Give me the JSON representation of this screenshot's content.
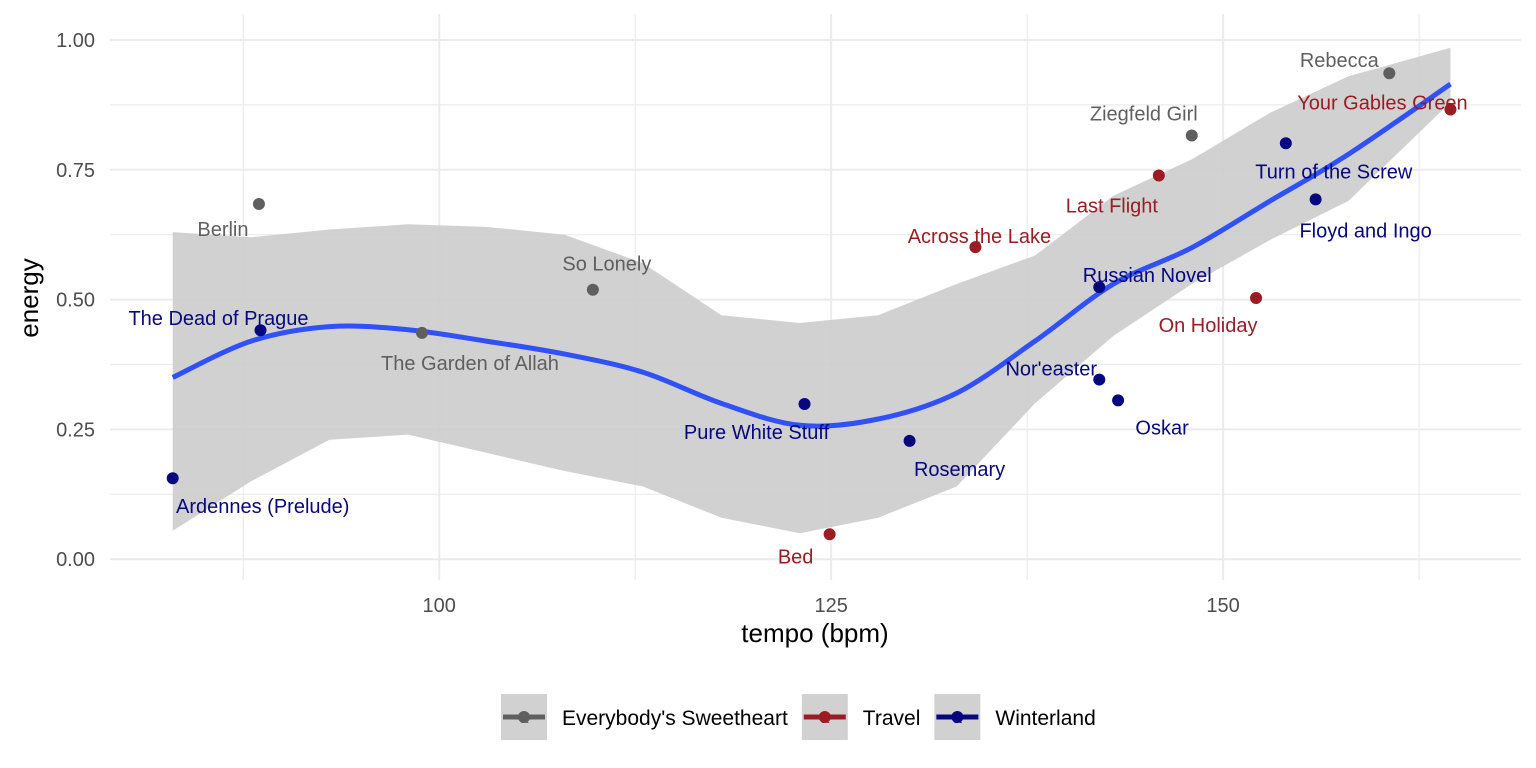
{
  "chart_data": {
    "type": "scatter",
    "title": "",
    "xlabel": "tempo (bpm)",
    "ylabel": "energy",
    "xlim": [
      79,
      169
    ],
    "ylim": [
      -0.04,
      1.05
    ],
    "x_ticks": [
      {
        "value": 100,
        "label": "100"
      },
      {
        "value": 125,
        "label": "125"
      },
      {
        "value": 150,
        "label": "150"
      }
    ],
    "y_ticks": [
      {
        "value": 0.0,
        "label": "0.00"
      },
      {
        "value": 0.25,
        "label": "0.25"
      },
      {
        "value": 0.5,
        "label": "0.50"
      },
      {
        "value": 0.75,
        "label": "0.75"
      },
      {
        "value": 1.0,
        "label": "1.00"
      }
    ],
    "grid": true,
    "legend_position": "bottom",
    "series": [
      {
        "name": "Everybody's Sweetheart",
        "color": "#5f5f5f",
        "points": [
          {
            "x": 88.5,
            "y": 0.684,
            "label": "Berlin"
          },
          {
            "x": 98.9,
            "y": 0.436,
            "label": "The Garden of Allah"
          },
          {
            "x": 109.8,
            "y": 0.519,
            "label": "So Lonely"
          },
          {
            "x": 148.0,
            "y": 0.816,
            "label": "Ziegfeld Girl"
          },
          {
            "x": 160.6,
            "y": 0.936,
            "label": "Rebecca"
          }
        ]
      },
      {
        "name": "Travel",
        "color": "#9b1c22",
        "points": [
          {
            "x": 124.9,
            "y": 0.048,
            "label": "Bed"
          },
          {
            "x": 134.2,
            "y": 0.601,
            "label": "Across the Lake"
          },
          {
            "x": 145.9,
            "y": 0.739,
            "label": "Last Flight"
          },
          {
            "x": 152.1,
            "y": 0.503,
            "label": "On Holiday"
          },
          {
            "x": 164.5,
            "y": 0.866,
            "label": "Your Gables Green"
          }
        ]
      },
      {
        "name": "Winterland",
        "color": "#07077f",
        "points": [
          {
            "x": 83.0,
            "y": 0.156,
            "label": "Ardennes (Prelude)"
          },
          {
            "x": 88.6,
            "y": 0.441,
            "label": "The Dead of Prague"
          },
          {
            "x": 123.3,
            "y": 0.299,
            "label": "Pure White Stuff"
          },
          {
            "x": 130.0,
            "y": 0.228,
            "label": "Rosemary"
          },
          {
            "x": 142.1,
            "y": 0.346,
            "label": "Nor'easter"
          },
          {
            "x": 143.3,
            "y": 0.306,
            "label": "Oskar"
          },
          {
            "x": 142.1,
            "y": 0.524,
            "label": "Russian Novel"
          },
          {
            "x": 154.0,
            "y": 0.801,
            "label": "Turn of the Screw"
          },
          {
            "x": 155.9,
            "y": 0.693,
            "label": "Floyd and Ingo"
          }
        ]
      }
    ],
    "smooth": {
      "method": "loess",
      "color": "#3050f8",
      "band_color": "#cccccc",
      "x": [
        83,
        88,
        93,
        98,
        103,
        108,
        113,
        118,
        123,
        128,
        133,
        138,
        143,
        148,
        153,
        158,
        164.5
      ],
      "y": [
        0.35,
        0.42,
        0.448,
        0.442,
        0.42,
        0.395,
        0.36,
        0.3,
        0.258,
        0.27,
        0.32,
        0.42,
        0.53,
        0.6,
        0.69,
        0.78,
        0.915
      ],
      "lower": [
        0.055,
        0.15,
        0.23,
        0.24,
        0.205,
        0.17,
        0.14,
        0.08,
        0.05,
        0.08,
        0.14,
        0.3,
        0.43,
        0.53,
        0.615,
        0.69,
        0.88
      ],
      "upper": [
        0.63,
        0.62,
        0.635,
        0.645,
        0.64,
        0.625,
        0.57,
        0.47,
        0.455,
        0.47,
        0.53,
        0.585,
        0.7,
        0.77,
        0.86,
        0.93,
        0.985
      ]
    }
  }
}
